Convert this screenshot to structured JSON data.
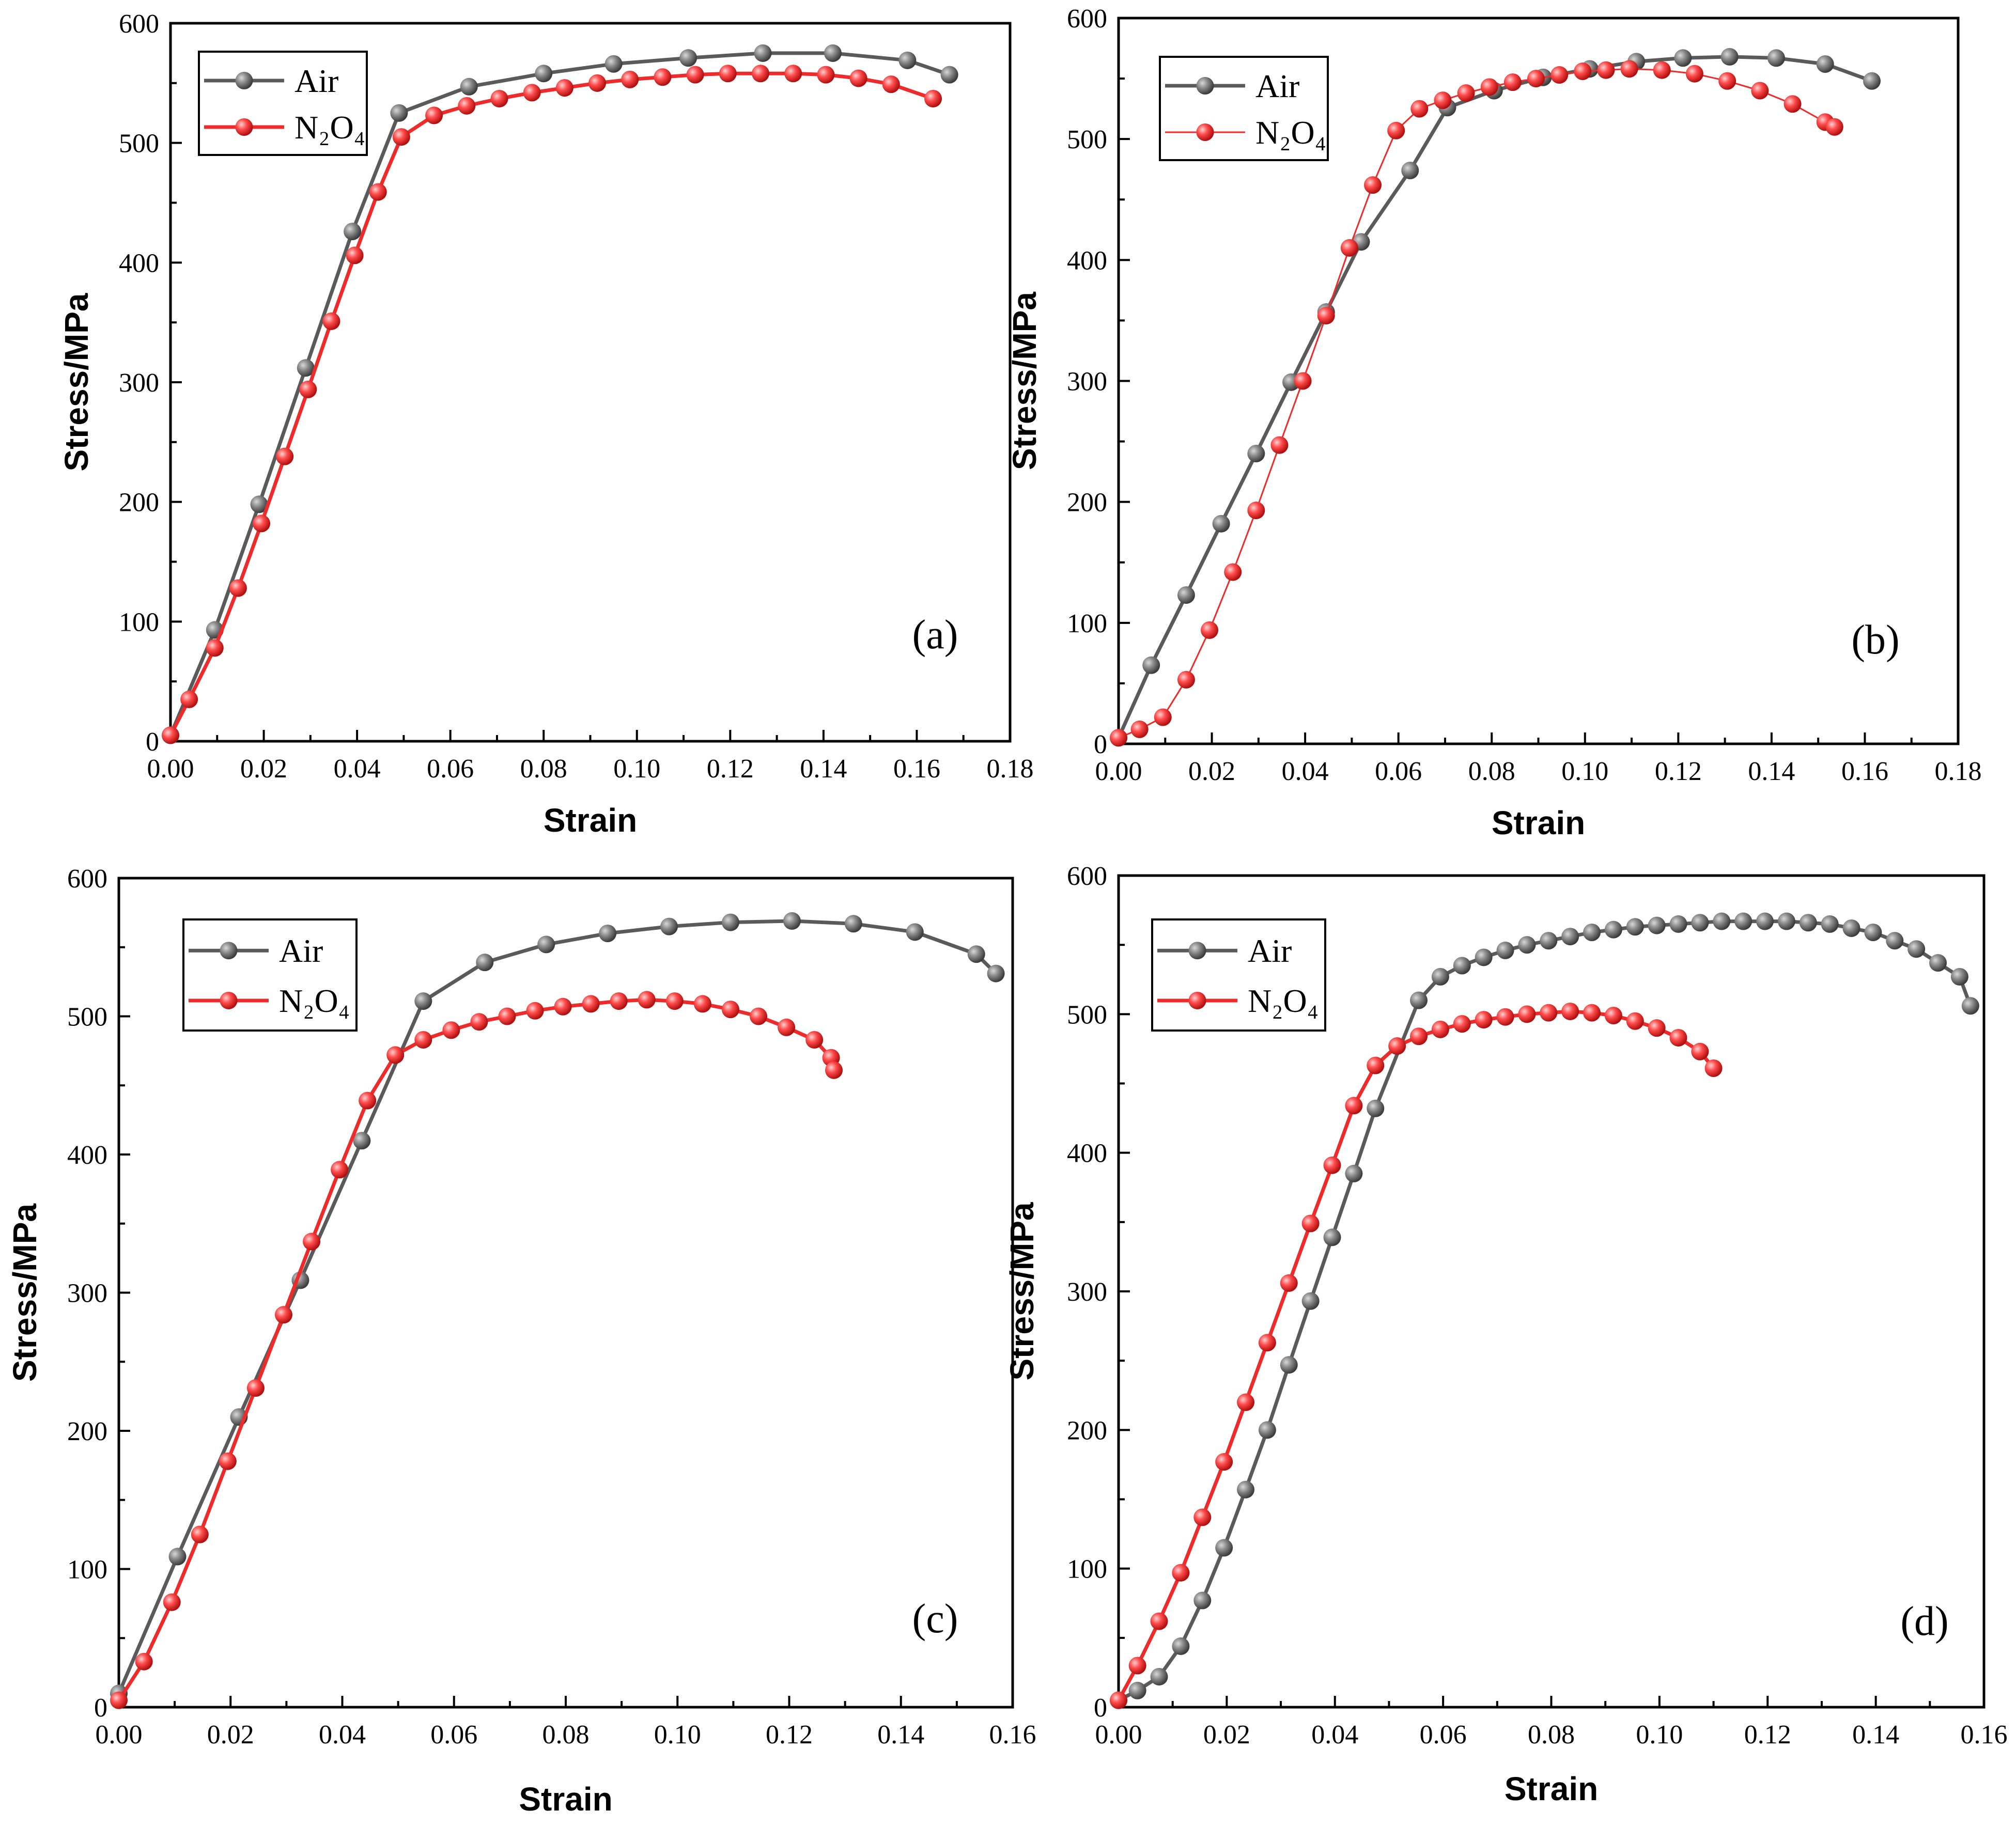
{
  "colors": {
    "Air": "#5a5a5a",
    "N2O4": "#ee2a2a"
  },
  "chart_data": [
    {
      "id": "a",
      "type": "line",
      "label": "(a)",
      "xlabel": "Strain",
      "ylabel": "Stress/MPa",
      "xlim": [
        0,
        0.18
      ],
      "ylim": [
        0,
        600
      ],
      "xticks": [
        "0.00",
        "0.02",
        "0.04",
        "0.06",
        "0.08",
        "0.10",
        "0.12",
        "0.14",
        "0.16",
        "0.18"
      ],
      "yticks": [
        "0",
        "100",
        "200",
        "300",
        "400",
        "500",
        "600"
      ],
      "legend": [
        "Air",
        "N₂O₄"
      ],
      "series": [
        {
          "name": "Air",
          "points": [
            [
              0,
              5
            ],
            [
              0.0095,
              93
            ],
            [
              0.019,
              198
            ],
            [
              0.029,
              312
            ],
            [
              0.039,
              426
            ],
            [
              0.049,
              525
            ],
            [
              0.064,
              547
            ],
            [
              0.08,
              558
            ],
            [
              0.095,
              566
            ],
            [
              0.111,
              571
            ],
            [
              0.127,
              575
            ],
            [
              0.142,
              575
            ],
            [
              0.158,
              569
            ],
            [
              0.167,
              557
            ]
          ]
        },
        {
          "name": "N2O4",
          "points": [
            [
              0,
              5
            ],
            [
              0.004,
              35
            ],
            [
              0.0095,
              78
            ],
            [
              0.0145,
              128
            ],
            [
              0.0195,
              182
            ],
            [
              0.0245,
              238
            ],
            [
              0.0295,
              294
            ],
            [
              0.0345,
              351
            ],
            [
              0.0395,
              406
            ],
            [
              0.0445,
              459
            ],
            [
              0.0495,
              505
            ],
            [
              0.0565,
              523
            ],
            [
              0.0635,
              531
            ],
            [
              0.0705,
              537
            ],
            [
              0.0775,
              542
            ],
            [
              0.0845,
              546
            ],
            [
              0.0915,
              550
            ],
            [
              0.0985,
              553
            ],
            [
              0.1055,
              555
            ],
            [
              0.1125,
              557
            ],
            [
              0.1195,
              558
            ],
            [
              0.1265,
              558
            ],
            [
              0.1335,
              558
            ],
            [
              0.1405,
              557
            ],
            [
              0.1475,
              554
            ],
            [
              0.1545,
              549
            ],
            [
              0.1635,
              537
            ]
          ]
        }
      ]
    },
    {
      "id": "b",
      "type": "line",
      "label": "(b)",
      "xlabel": "Strain",
      "ylabel": "Stress/MPa",
      "xlim": [
        0,
        0.18
      ],
      "ylim": [
        0,
        600
      ],
      "xticks": [
        "0.00",
        "0.02",
        "0.04",
        "0.06",
        "0.08",
        "0.10",
        "0.12",
        "0.14",
        "0.16",
        "0.18"
      ],
      "yticks": [
        "0",
        "100",
        "200",
        "300",
        "400",
        "500",
        "600"
      ],
      "legend": [
        "Air",
        "N₂O₄"
      ],
      "series": [
        {
          "name": "Air",
          "points": [
            [
              0,
              5
            ],
            [
              0.007,
              65
            ],
            [
              0.0145,
              123
            ],
            [
              0.022,
              182
            ],
            [
              0.0295,
              240
            ],
            [
              0.037,
              299
            ],
            [
              0.0445,
              357
            ],
            [
              0.052,
              415
            ],
            [
              0.0625,
              474
            ],
            [
              0.0705,
              526
            ],
            [
              0.0805,
              540
            ],
            [
              0.091,
              551
            ],
            [
              0.101,
              558
            ],
            [
              0.111,
              564
            ],
            [
              0.121,
              567
            ],
            [
              0.131,
              568
            ],
            [
              0.141,
              567
            ],
            [
              0.1515,
              562
            ],
            [
              0.1615,
              548
            ]
          ]
        },
        {
          "name": "N2O4",
          "points": [
            [
              0,
              5
            ],
            [
              0.0045,
              12
            ],
            [
              0.0095,
              22
            ],
            [
              0.0145,
              53
            ],
            [
              0.0195,
              94
            ],
            [
              0.0245,
              142
            ],
            [
              0.0295,
              193
            ],
            [
              0.0345,
              247
            ],
            [
              0.0395,
              300
            ],
            [
              0.0445,
              354
            ],
            [
              0.0495,
              410
            ],
            [
              0.0545,
              462
            ],
            [
              0.0595,
              507
            ],
            [
              0.0645,
              525
            ],
            [
              0.0695,
              532
            ],
            [
              0.0745,
              538
            ],
            [
              0.0795,
              543
            ],
            [
              0.0845,
              547
            ],
            [
              0.0895,
              550
            ],
            [
              0.0945,
              553
            ],
            [
              0.0995,
              556
            ],
            [
              0.1045,
              557
            ],
            [
              0.1095,
              558
            ],
            [
              0.1165,
              557
            ],
            [
              0.1235,
              554
            ],
            [
              0.1305,
              548
            ],
            [
              0.1375,
              540
            ],
            [
              0.1445,
              529
            ],
            [
              0.1515,
              514
            ],
            [
              0.1535,
              510
            ]
          ]
        }
      ]
    },
    {
      "id": "c",
      "type": "line",
      "label": "(c)",
      "xlabel": "Strain",
      "ylabel": "Stress/MPa",
      "xlim": [
        0,
        0.16
      ],
      "ylim": [
        0,
        600
      ],
      "xticks": [
        "0.00",
        "0.02",
        "0.04",
        "0.06",
        "0.08",
        "0.10",
        "0.12",
        "0.14",
        "0.16"
      ],
      "yticks": [
        "0",
        "100",
        "200",
        "300",
        "400",
        "500",
        "600"
      ],
      "legend": [
        "Air",
        "N₂O₄"
      ],
      "series": [
        {
          "name": "Air",
          "points": [
            [
              0,
              10
            ],
            [
              0.0105,
              109
            ],
            [
              0.0215,
              210
            ],
            [
              0.0325,
              309
            ],
            [
              0.0435,
              410
            ],
            [
              0.0545,
              511
            ],
            [
              0.0655,
              539
            ],
            [
              0.0765,
              552
            ],
            [
              0.0875,
              560
            ],
            [
              0.0985,
              565
            ],
            [
              0.1095,
              568
            ],
            [
              0.1205,
              569
            ],
            [
              0.1315,
              567
            ],
            [
              0.1425,
              561
            ],
            [
              0.1535,
              545
            ],
            [
              0.157,
              531
            ]
          ]
        },
        {
          "name": "N2O4",
          "points": [
            [
              0,
              5
            ],
            [
              0.0045,
              33
            ],
            [
              0.0095,
              76
            ],
            [
              0.0145,
              125
            ],
            [
              0.0195,
              178
            ],
            [
              0.0245,
              231
            ],
            [
              0.0295,
              284
            ],
            [
              0.0345,
              337
            ],
            [
              0.0395,
              389
            ],
            [
              0.0445,
              439
            ],
            [
              0.0495,
              472
            ],
            [
              0.0545,
              483
            ],
            [
              0.0595,
              490
            ],
            [
              0.0645,
              496
            ],
            [
              0.0695,
              500
            ],
            [
              0.0745,
              504
            ],
            [
              0.0795,
              507
            ],
            [
              0.0845,
              509
            ],
            [
              0.0895,
              511
            ],
            [
              0.0945,
              512
            ],
            [
              0.0995,
              511
            ],
            [
              0.1045,
              509
            ],
            [
              0.1095,
              505
            ],
            [
              0.1145,
              500
            ],
            [
              0.1195,
              492
            ],
            [
              0.1245,
              483
            ],
            [
              0.1275,
              470
            ],
            [
              0.128,
              461
            ]
          ]
        }
      ]
    },
    {
      "id": "d",
      "type": "line",
      "label": "(d)",
      "xlabel": "Strain",
      "ylabel": "Stress/MPa",
      "xlim": [
        0,
        0.16
      ],
      "ylim": [
        0,
        600
      ],
      "xticks": [
        "0.00",
        "0.02",
        "0.04",
        "0.06",
        "0.08",
        "0.10",
        "0.12",
        "0.14",
        "0.16"
      ],
      "yticks": [
        "0",
        "100",
        "200",
        "300",
        "400",
        "500",
        "600"
      ],
      "legend": [
        "Air",
        "N₂O₄"
      ],
      "series": [
        {
          "name": "Air",
          "points": [
            [
              0,
              5
            ],
            [
              0.0035,
              12
            ],
            [
              0.0075,
              22
            ],
            [
              0.0115,
              44
            ],
            [
              0.0155,
              77
            ],
            [
              0.0195,
              115
            ],
            [
              0.0235,
              157
            ],
            [
              0.0275,
              200
            ],
            [
              0.0315,
              247
            ],
            [
              0.0355,
              293
            ],
            [
              0.0395,
              339
            ],
            [
              0.0435,
              385
            ],
            [
              0.0475,
              432
            ],
            [
              0.0555,
              510
            ],
            [
              0.0595,
              527
            ],
            [
              0.0635,
              535
            ],
            [
              0.0675,
              541
            ],
            [
              0.0715,
              546
            ],
            [
              0.0755,
              550
            ],
            [
              0.0795,
              553
            ],
            [
              0.0835,
              556
            ],
            [
              0.0875,
              559
            ],
            [
              0.0915,
              561
            ],
            [
              0.0955,
              563
            ],
            [
              0.0995,
              564
            ],
            [
              0.1035,
              565
            ],
            [
              0.1075,
              566
            ],
            [
              0.1115,
              567
            ],
            [
              0.1155,
              567
            ],
            [
              0.1195,
              567
            ],
            [
              0.1235,
              567
            ],
            [
              0.1275,
              566
            ],
            [
              0.1315,
              565
            ],
            [
              0.1355,
              562
            ],
            [
              0.1395,
              559
            ],
            [
              0.1435,
              553
            ],
            [
              0.1475,
              547
            ],
            [
              0.1515,
              537
            ],
            [
              0.1555,
              527
            ],
            [
              0.1575,
              506
            ]
          ]
        },
        {
          "name": "N2O4",
          "points": [
            [
              0,
              5
            ],
            [
              0.0035,
              30
            ],
            [
              0.0075,
              62
            ],
            [
              0.0115,
              97
            ],
            [
              0.0155,
              137
            ],
            [
              0.0195,
              177
            ],
            [
              0.0235,
              220
            ],
            [
              0.0275,
              263
            ],
            [
              0.0315,
              306
            ],
            [
              0.0355,
              349
            ],
            [
              0.0395,
              391
            ],
            [
              0.0435,
              434
            ],
            [
              0.0475,
              463
            ],
            [
              0.0515,
              477
            ],
            [
              0.0555,
              484
            ],
            [
              0.0595,
              489
            ],
            [
              0.0635,
              493
            ],
            [
              0.0675,
              496
            ],
            [
              0.0715,
              498
            ],
            [
              0.0755,
              500
            ],
            [
              0.0795,
              501
            ],
            [
              0.0835,
              502
            ],
            [
              0.0875,
              501
            ],
            [
              0.0915,
              499
            ],
            [
              0.0955,
              495
            ],
            [
              0.0995,
              490
            ],
            [
              0.1035,
              483
            ],
            [
              0.1075,
              473
            ],
            [
              0.11,
              461
            ]
          ]
        }
      ]
    }
  ]
}
